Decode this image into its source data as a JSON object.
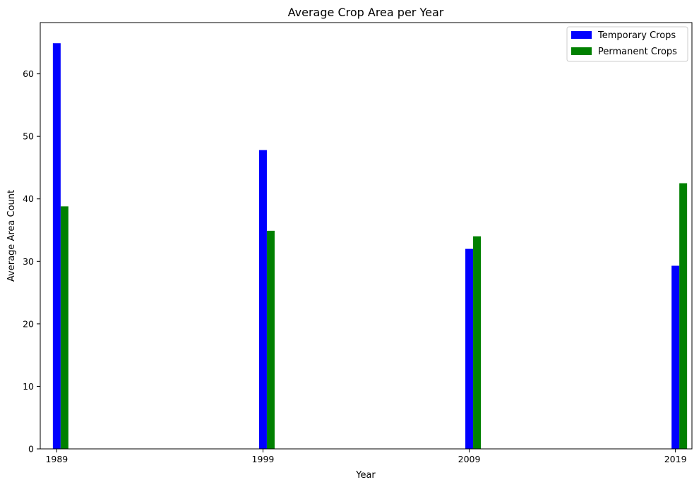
{
  "chart_data": {
    "type": "bar",
    "title": "Average Crop Area per Year",
    "xlabel": "Year",
    "ylabel": "Average Area Count",
    "x": [
      1989,
      1999,
      2009,
      2019
    ],
    "x_ticks": [
      "1989",
      "1999",
      "2009",
      "2019"
    ],
    "y_ticks": [
      "0",
      "10",
      "20",
      "30",
      "40",
      "50",
      "60"
    ],
    "ylim": [
      0,
      68.2
    ],
    "xlim": [
      1988.2,
      2019.8
    ],
    "grid": false,
    "legend_position": "top-right",
    "series": [
      {
        "name": "Temporary Crops",
        "color": "#0000ff",
        "values": [
          64.9,
          47.8,
          32.0,
          29.3
        ]
      },
      {
        "name": "Permanent Crops",
        "color": "#008000",
        "values": [
          38.8,
          34.9,
          34.0,
          42.5
        ]
      }
    ]
  }
}
